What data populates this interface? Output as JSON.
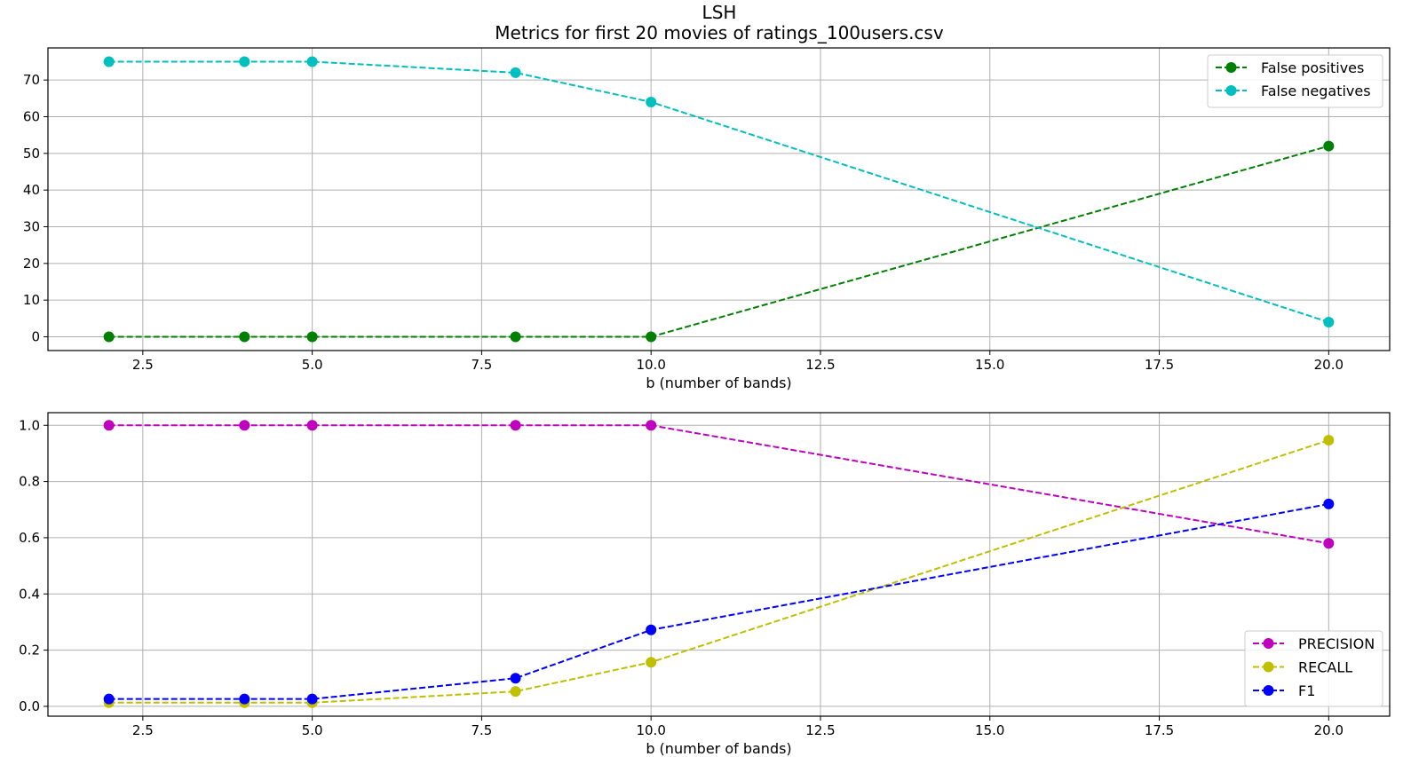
{
  "figure": {
    "title": "LSH",
    "subtitle": "Metrics for first 20 movies of ratings_100users.csv"
  },
  "chart_data": [
    {
      "type": "line",
      "xlabel": "b (number of bands)",
      "ylabel": "",
      "x": [
        2,
        4,
        5,
        8,
        10,
        20
      ],
      "xlim": [
        1.1,
        20.9
      ],
      "ylim": [
        -3.75,
        78.75
      ],
      "xticks": [
        2.5,
        5.0,
        7.5,
        10.0,
        12.5,
        15.0,
        17.5,
        20.0
      ],
      "xtick_labels": [
        "2.5",
        "5.0",
        "7.5",
        "10.0",
        "12.5",
        "15.0",
        "17.5",
        "20.0"
      ],
      "yticks": [
        0,
        10,
        20,
        30,
        40,
        50,
        60,
        70
      ],
      "ytick_labels": [
        "0",
        "10",
        "20",
        "30",
        "40",
        "50",
        "60",
        "70"
      ],
      "grid": true,
      "legend_position": "top-right",
      "series": [
        {
          "name": "False positives",
          "color": "#008000",
          "linestyle": "dashed",
          "marker": "circle",
          "values": [
            0,
            0,
            0,
            0,
            0,
            52
          ]
        },
        {
          "name": "False negatives",
          "color": "#00bfbf",
          "linestyle": "dashed",
          "marker": "circle",
          "values": [
            75,
            75,
            75,
            72,
            64,
            4
          ]
        }
      ]
    },
    {
      "type": "line",
      "xlabel": "b (number of bands)",
      "ylabel": "",
      "x": [
        2,
        4,
        5,
        8,
        10,
        20
      ],
      "xlim": [
        1.1,
        20.9
      ],
      "ylim": [
        -0.035,
        1.045
      ],
      "xticks": [
        2.5,
        5.0,
        7.5,
        10.0,
        12.5,
        15.0,
        17.5,
        20.0
      ],
      "xtick_labels": [
        "2.5",
        "5.0",
        "7.5",
        "10.0",
        "12.5",
        "15.0",
        "17.5",
        "20.0"
      ],
      "yticks": [
        0.0,
        0.2,
        0.4,
        0.6,
        0.8,
        1.0
      ],
      "ytick_labels": [
        "0.0",
        "0.2",
        "0.4",
        "0.6",
        "0.8",
        "1.0"
      ],
      "grid": true,
      "legend_position": "lower-right",
      "series": [
        {
          "name": "PRECISION",
          "color": "#bf00bf",
          "linestyle": "dashed",
          "marker": "circle",
          "values": [
            1.0,
            1.0,
            1.0,
            1.0,
            1.0,
            0.58
          ]
        },
        {
          "name": "RECALL",
          "color": "#bfbf00",
          "linestyle": "dashed",
          "marker": "circle",
          "values": [
            0.013,
            0.013,
            0.013,
            0.053,
            0.157,
            0.947
          ]
        },
        {
          "name": "F1",
          "color": "#0000ff",
          "linestyle": "dashed",
          "marker": "circle",
          "values": [
            0.026,
            0.026,
            0.026,
            0.1,
            0.272,
            0.72
          ]
        }
      ]
    }
  ]
}
